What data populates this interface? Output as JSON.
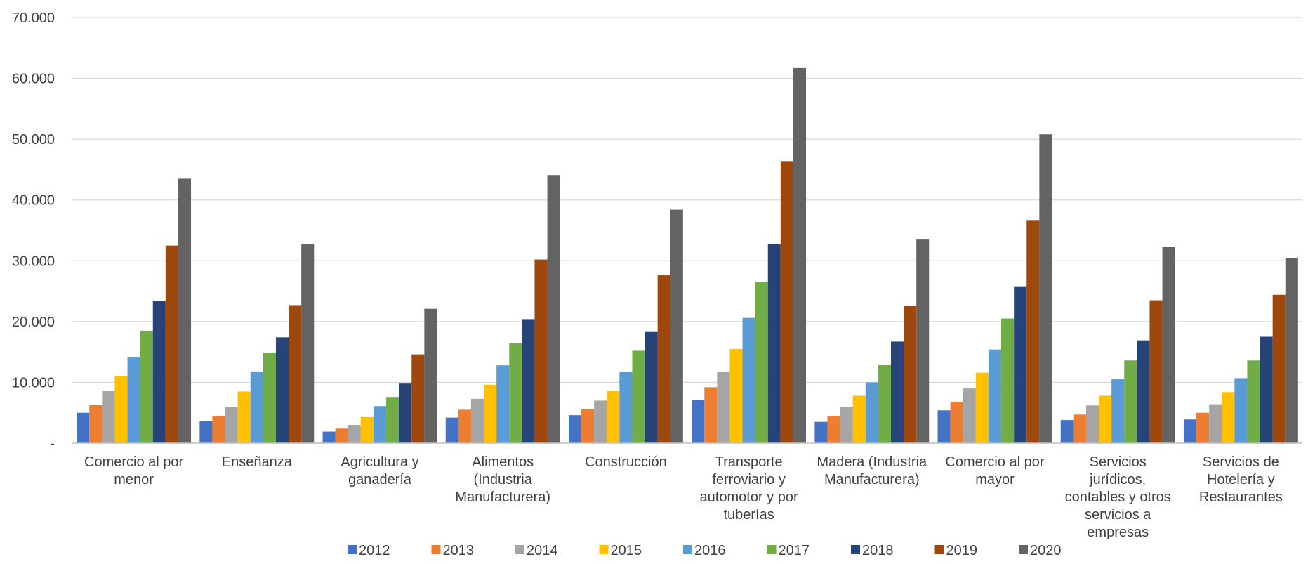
{
  "chart_data": {
    "type": "bar",
    "title": "",
    "xlabel": "",
    "ylabel": "",
    "ylim": [
      0,
      70000
    ],
    "grid": true,
    "legend_position": "bottom",
    "y_ticks": [
      {
        "value": 0,
        "label": "-"
      },
      {
        "value": 10000,
        "label": "10.000"
      },
      {
        "value": 20000,
        "label": "20.000"
      },
      {
        "value": 30000,
        "label": "30.000"
      },
      {
        "value": 40000,
        "label": "40.000"
      },
      {
        "value": 50000,
        "label": "50.000"
      },
      {
        "value": 60000,
        "label": "60.000"
      },
      {
        "value": 70000,
        "label": "70.000"
      }
    ],
    "categories": [
      [
        "Comercio al por",
        "menor"
      ],
      [
        "Enseñanza"
      ],
      [
        "Agricultura y",
        "ganadería"
      ],
      [
        "Alimentos",
        "(Industria",
        "Manufacturera)"
      ],
      [
        "Construcción"
      ],
      [
        "Transporte",
        "ferroviario y",
        "automotor y por",
        "tuberías"
      ],
      [
        "Madera (Industria",
        "Manufacturera)"
      ],
      [
        "Comercio al por",
        "mayor"
      ],
      [
        "Servicios",
        "jurídicos,",
        "contables y otros",
        "servicios a",
        "empresas"
      ],
      [
        "Servicios de",
        "Hotelería y",
        "Restaurantes"
      ]
    ],
    "series": [
      {
        "name": "2012",
        "color": "#4472C4",
        "values": [
          5000,
          3600,
          1900,
          4200,
          4600,
          7100,
          3500,
          5400,
          3800,
          3900
        ]
      },
      {
        "name": "2013",
        "color": "#ED7D31",
        "values": [
          6300,
          4500,
          2400,
          5500,
          5600,
          9200,
          4500,
          6800,
          4700,
          5000
        ]
      },
      {
        "name": "2014",
        "color": "#A5A5A5",
        "values": [
          8600,
          6000,
          3000,
          7300,
          7000,
          11800,
          5900,
          9000,
          6200,
          6400
        ]
      },
      {
        "name": "2015",
        "color": "#FFC000",
        "values": [
          11000,
          8500,
          4400,
          9600,
          8600,
          15500,
          7800,
          11600,
          7800,
          8400
        ]
      },
      {
        "name": "2016",
        "color": "#5B9BD5",
        "values": [
          14200,
          11800,
          6100,
          12800,
          11700,
          20600,
          10000,
          15400,
          10500,
          10700
        ]
      },
      {
        "name": "2017",
        "color": "#70AD47",
        "values": [
          18500,
          14900,
          7600,
          16400,
          15200,
          26500,
          12900,
          20500,
          13600,
          13600
        ]
      },
      {
        "name": "2018",
        "color": "#264478",
        "values": [
          23400,
          17400,
          9800,
          20400,
          18400,
          32800,
          16700,
          25800,
          16900,
          17500
        ]
      },
      {
        "name": "2019",
        "color": "#9E480E",
        "values": [
          32500,
          22700,
          14600,
          30200,
          27600,
          46400,
          22600,
          36700,
          23500,
          24400
        ]
      },
      {
        "name": "2020",
        "color": "#636363",
        "values": [
          43500,
          32700,
          22100,
          44100,
          38400,
          61700,
          33600,
          50800,
          32300,
          30500
        ]
      }
    ]
  }
}
